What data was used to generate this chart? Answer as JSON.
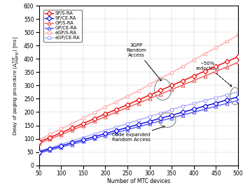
{
  "x": [
    50,
    75,
    100,
    125,
    150,
    175,
    200,
    225,
    250,
    275,
    300,
    325,
    350,
    375,
    400,
    425,
    450,
    475,
    500
  ],
  "SP_S_RA": [
    88,
    105,
    122,
    140,
    157,
    175,
    193,
    210,
    228,
    246,
    264,
    282,
    300,
    318,
    336,
    354,
    372,
    390,
    408
  ],
  "SP_CE_RA": [
    50,
    62,
    73,
    85,
    96,
    108,
    119,
    131,
    142,
    154,
    165,
    177,
    188,
    200,
    211,
    223,
    234,
    246,
    257
  ],
  "GP_S_RA": [
    82,
    99,
    115,
    132,
    149,
    166,
    183,
    200,
    217,
    234,
    251,
    268,
    285,
    302,
    319,
    336,
    353,
    370,
    387
  ],
  "GP_CE_RA": [
    46,
    57,
    68,
    79,
    90,
    101,
    112,
    123,
    134,
    145,
    156,
    167,
    178,
    189,
    200,
    211,
    222,
    233,
    244
  ],
  "eGP_S_RA": [
    96,
    116,
    137,
    157,
    178,
    198,
    219,
    239,
    260,
    280,
    304,
    328,
    348,
    372,
    396,
    420,
    442,
    466,
    490
  ],
  "eGP_CE_RA": [
    53,
    66,
    79,
    92,
    105,
    118,
    131,
    144,
    157,
    170,
    183,
    196,
    209,
    222,
    232,
    244,
    254,
    265,
    276
  ],
  "xlabel": "Number of MTC devices",
  "ylabel": "Delay of paging procedure ($\\Delta^{TOT}_{paging}$) [ms]",
  "ylim": [
    0,
    600
  ],
  "xlim": [
    50,
    500
  ],
  "yticks": [
    0,
    50,
    100,
    150,
    200,
    250,
    300,
    350,
    400,
    450,
    500,
    550,
    600
  ],
  "xticks": [
    50,
    100,
    150,
    200,
    250,
    300,
    350,
    400,
    450,
    500
  ],
  "red_dark": "#EE0000",
  "red_mid": "#EE5555",
  "red_light": "#FFAAAA",
  "blue_dark": "#0000EE",
  "blue_mid": "#5555EE",
  "blue_light": "#AAAAFF"
}
